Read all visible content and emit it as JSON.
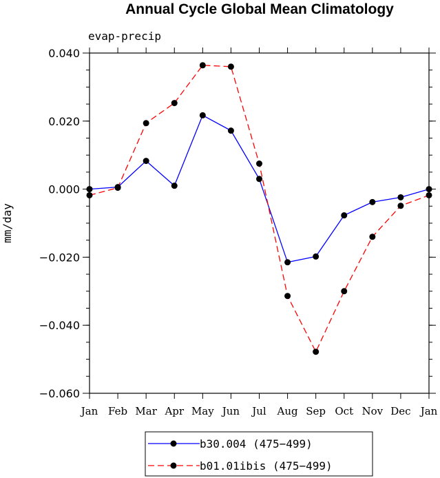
{
  "chart_data": {
    "type": "line",
    "title": "Annual Cycle Global Mean Climatology",
    "subtitle": "evap-precip",
    "xlabel": "",
    "ylabel": "mm/day",
    "categories": [
      "Jan",
      "Feb",
      "Mar",
      "Apr",
      "May",
      "Jun",
      "Jul",
      "Aug",
      "Sep",
      "Oct",
      "Nov",
      "Dec",
      "Jan"
    ],
    "ylim": [
      -0.06,
      0.04
    ],
    "yticks": [
      0.04,
      0.02,
      0.0,
      -0.02,
      -0.04,
      -0.06
    ],
    "ytick_labels": [
      "0.040",
      "0.020",
      "0.000",
      "−0.020",
      "−0.040",
      "−0.060"
    ],
    "grid": false,
    "legend_position": "bottom",
    "series": [
      {
        "name": "b30.004 (475−499)",
        "color": "#0000ff",
        "dash": "solid",
        "values": [
          0.0,
          0.0006,
          0.0083,
          0.001,
          0.0217,
          0.0172,
          0.003,
          -0.0215,
          -0.0198,
          -0.0077,
          -0.0038,
          -0.0024,
          0.0
        ]
      },
      {
        "name": "b01.01ibis (475−499)",
        "color": "#ff0000",
        "dash": "dashed",
        "values": [
          -0.0018,
          0.0004,
          0.0194,
          0.0253,
          0.0364,
          0.036,
          0.0075,
          -0.0314,
          -0.0478,
          -0.03,
          -0.014,
          -0.0049,
          -0.0018
        ]
      }
    ]
  }
}
